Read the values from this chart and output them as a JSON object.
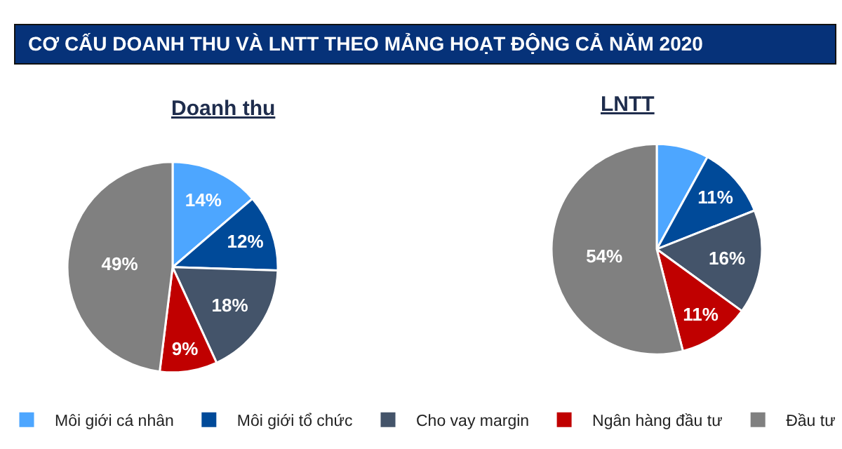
{
  "chart_data": {
    "type": "pie",
    "title": "CƠ CẤU DOANH THU VÀ LNTT THEO MẢNG HOẠT ĐỘNG CẢ NĂM 2020",
    "categories": [
      "Môi giới cá nhân",
      "Môi giới tổ chức",
      "Cho vay margin",
      "Ngân hàng đầu tư",
      "Đầu tư"
    ],
    "colors": [
      "#4da6ff",
      "#004a99",
      "#44546a",
      "#c00000",
      "#808080"
    ],
    "series": [
      {
        "name": "Doanh thu",
        "values": [
          14,
          12,
          18,
          9,
          49
        ],
        "value_labels": [
          "14%",
          "12%",
          "18%",
          "9%",
          "49%"
        ]
      },
      {
        "name": "LNTT",
        "values": [
          8,
          11,
          16,
          11,
          54
        ],
        "value_labels": [
          null,
          "11%",
          "16%",
          "11%",
          "54%"
        ]
      }
    ],
    "legend": "bottom"
  }
}
